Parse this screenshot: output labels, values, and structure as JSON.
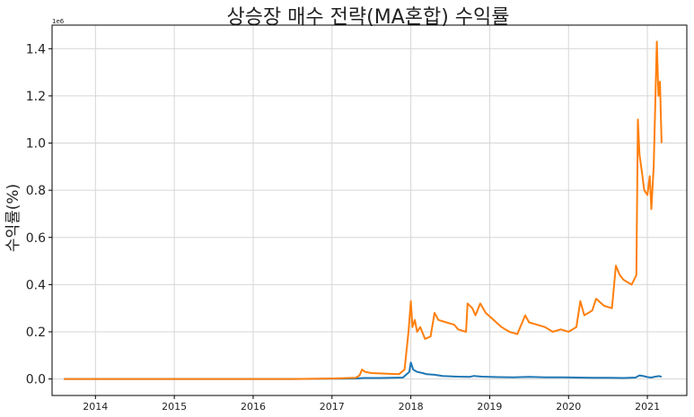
{
  "chart_data": {
    "type": "line",
    "title": "상승장 매수 전략(MA혼합) 수익률",
    "xlabel": "",
    "ylabel": "수익률(%)",
    "y_offset_label": "1e6",
    "ylim": [
      -0.07,
      1.5
    ],
    "yticks": [
      "0.0",
      "0.2",
      "0.4",
      "0.6",
      "0.8",
      "1.0",
      "1.2",
      "1.4"
    ],
    "xlim": [
      2013.45,
      2021.5
    ],
    "xticks": [
      "2014",
      "2015",
      "2016",
      "2017",
      "2018",
      "2019",
      "2020",
      "2021"
    ],
    "grid": true,
    "legend": false,
    "colors": {
      "series_1": "#1f77b4",
      "series_2": "#ff7f0e"
    },
    "series": [
      {
        "values": [
          [
            2013.6,
            0.0
          ],
          [
            2014.5,
            0.0
          ],
          [
            2015.5,
            0.0
          ],
          [
            2016.5,
            0.0
          ],
          [
            2017.0,
            0.001
          ],
          [
            2017.3,
            0.002
          ],
          [
            2017.4,
            0.004
          ],
          [
            2017.6,
            0.004
          ],
          [
            2017.9,
            0.006
          ],
          [
            2017.98,
            0.03
          ],
          [
            2018.0,
            0.07
          ],
          [
            2018.03,
            0.04
          ],
          [
            2018.08,
            0.03
          ],
          [
            2018.15,
            0.025
          ],
          [
            2018.2,
            0.02
          ],
          [
            2018.3,
            0.018
          ],
          [
            2018.4,
            0.013
          ],
          [
            2018.6,
            0.01
          ],
          [
            2018.75,
            0.009
          ],
          [
            2018.8,
            0.013
          ],
          [
            2018.9,
            0.01
          ],
          [
            2019.1,
            0.008
          ],
          [
            2019.3,
            0.007
          ],
          [
            2019.5,
            0.009
          ],
          [
            2019.7,
            0.007
          ],
          [
            2019.9,
            0.007
          ],
          [
            2020.1,
            0.006
          ],
          [
            2020.3,
            0.005
          ],
          [
            2020.5,
            0.005
          ],
          [
            2020.7,
            0.004
          ],
          [
            2020.85,
            0.006
          ],
          [
            2020.9,
            0.015
          ],
          [
            2020.95,
            0.012
          ],
          [
            2021.0,
            0.008
          ],
          [
            2021.05,
            0.006
          ],
          [
            2021.1,
            0.01
          ],
          [
            2021.15,
            0.012
          ],
          [
            2021.18,
            0.009
          ]
        ]
      },
      {
        "values": [
          [
            2013.6,
            0.0
          ],
          [
            2014.5,
            0.0
          ],
          [
            2015.5,
            0.0
          ],
          [
            2016.5,
            0.0
          ],
          [
            2017.0,
            0.002
          ],
          [
            2017.3,
            0.005
          ],
          [
            2017.35,
            0.015
          ],
          [
            2017.38,
            0.04
          ],
          [
            2017.42,
            0.03
          ],
          [
            2017.5,
            0.025
          ],
          [
            2017.7,
            0.022
          ],
          [
            2017.85,
            0.02
          ],
          [
            2017.92,
            0.04
          ],
          [
            2017.97,
            0.2
          ],
          [
            2018.0,
            0.33
          ],
          [
            2018.02,
            0.22
          ],
          [
            2018.05,
            0.25
          ],
          [
            2018.08,
            0.2
          ],
          [
            2018.12,
            0.22
          ],
          [
            2018.18,
            0.17
          ],
          [
            2018.25,
            0.18
          ],
          [
            2018.3,
            0.28
          ],
          [
            2018.35,
            0.25
          ],
          [
            2018.45,
            0.24
          ],
          [
            2018.55,
            0.23
          ],
          [
            2018.6,
            0.21
          ],
          [
            2018.7,
            0.2
          ],
          [
            2018.72,
            0.32
          ],
          [
            2018.78,
            0.3
          ],
          [
            2018.82,
            0.27
          ],
          [
            2018.88,
            0.32
          ],
          [
            2018.95,
            0.28
          ],
          [
            2019.05,
            0.25
          ],
          [
            2019.15,
            0.22
          ],
          [
            2019.25,
            0.2
          ],
          [
            2019.35,
            0.19
          ],
          [
            2019.45,
            0.27
          ],
          [
            2019.5,
            0.24
          ],
          [
            2019.6,
            0.23
          ],
          [
            2019.7,
            0.22
          ],
          [
            2019.8,
            0.2
          ],
          [
            2019.9,
            0.21
          ],
          [
            2020.0,
            0.2
          ],
          [
            2020.1,
            0.22
          ],
          [
            2020.15,
            0.33
          ],
          [
            2020.2,
            0.27
          ],
          [
            2020.3,
            0.29
          ],
          [
            2020.35,
            0.34
          ],
          [
            2020.45,
            0.31
          ],
          [
            2020.55,
            0.3
          ],
          [
            2020.6,
            0.48
          ],
          [
            2020.65,
            0.44
          ],
          [
            2020.7,
            0.42
          ],
          [
            2020.8,
            0.4
          ],
          [
            2020.86,
            0.44
          ],
          [
            2020.88,
            1.1
          ],
          [
            2020.9,
            0.95
          ],
          [
            2020.93,
            0.88
          ],
          [
            2020.96,
            0.8
          ],
          [
            2021.0,
            0.78
          ],
          [
            2021.03,
            0.86
          ],
          [
            2021.05,
            0.72
          ],
          [
            2021.08,
            0.9
          ],
          [
            2021.12,
            1.43
          ],
          [
            2021.14,
            1.2
          ],
          [
            2021.16,
            1.26
          ],
          [
            2021.18,
            1.0
          ]
        ]
      }
    ]
  }
}
